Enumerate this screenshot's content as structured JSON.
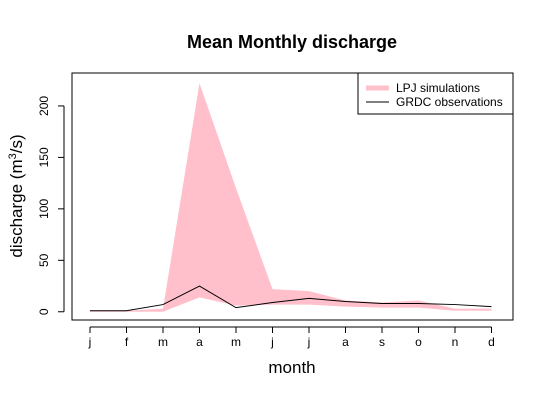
{
  "chart_data": {
    "type": "area",
    "title": "Mean Monthly discharge",
    "xlabel": "month",
    "ylabel_main": "discharge (m",
    "ylabel_sup": "3",
    "ylabel_tail": "/s)",
    "categories": [
      "j",
      "f",
      "m",
      "a",
      "m",
      "j",
      "j",
      "a",
      "s",
      "o",
      "n",
      "d"
    ],
    "ylim": [
      -8,
      232
    ],
    "yticks": [
      0,
      50,
      100,
      150,
      200
    ],
    "grid": false,
    "legend_position": "top-right",
    "series": [
      {
        "name": "LPJ simulations",
        "kind": "band",
        "color": "#FFC0CB",
        "upper": [
          1,
          1,
          3,
          222,
          120,
          22,
          20,
          11,
          9,
          11,
          3,
          3
        ],
        "lower": [
          0,
          0,
          0,
          14,
          6,
          7,
          7,
          5,
          4,
          4,
          1,
          1
        ]
      },
      {
        "name": "GRDC observations",
        "kind": "line",
        "color": "#000000",
        "values": [
          1,
          1,
          7,
          25,
          4,
          9,
          13,
          10,
          8,
          8,
          7,
          5
        ]
      }
    ]
  }
}
